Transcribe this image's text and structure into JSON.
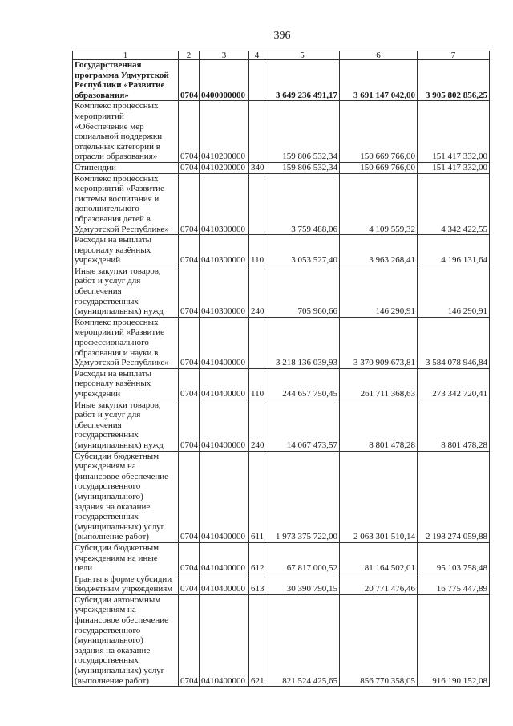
{
  "page_number": "396",
  "table": {
    "headers": [
      "1",
      "2",
      "3",
      "4",
      "5",
      "6",
      "7"
    ],
    "rows": [
      {
        "bold": true,
        "name": "Государственная\nпрограмма Удмуртской\nРеспублики «Развитие\nобразования»",
        "rz": "0704",
        "csr": "0400000000",
        "vr": "",
        "v5": "3 649 236 491,17",
        "v6": "3 691 147 042,00",
        "v7": "3 905 802 856,25"
      },
      {
        "name": "Комплекс процессных\nмероприятий\n«Обеспечение мер\nсоциальной поддержки\nотдельных категорий в\nотрасли образования»",
        "rz": "0704",
        "csr": "0410200000",
        "vr": "",
        "v5": "159 806 532,34",
        "v6": "150 669 766,00",
        "v7": "151 417 332,00"
      },
      {
        "name": "Стипендии",
        "rz": "0704",
        "csr": "0410200000",
        "vr": "340",
        "v5": "159 806 532,34",
        "v6": "150 669 766,00",
        "v7": "151 417 332,00"
      },
      {
        "name": "Комплекс процессных\nмероприятий «Развитие\nсистемы воспитания и\nдополнительного\nобразования детей в\nУдмуртской Республике»",
        "rz": "0704",
        "csr": "0410300000",
        "vr": "",
        "v5": "3 759 488,06",
        "v6": "4 109 559,32",
        "v7": "4 342 422,55"
      },
      {
        "name": "Расходы на выплаты\nперсоналу казённых\nучреждений",
        "rz": "0704",
        "csr": "0410300000",
        "vr": "110",
        "v5": "3 053 527,40",
        "v6": "3 963 268,41",
        "v7": "4 196 131,64"
      },
      {
        "name": "Иные закупки товаров,\nработ и услуг для\nобеспечения\nгосударственных\n(муниципальных) нужд",
        "rz": "0704",
        "csr": "0410300000",
        "vr": "240",
        "v5": "705 960,66",
        "v6": "146 290,91",
        "v7": "146 290,91"
      },
      {
        "name": "Комплекс процессных\nмероприятий «Развитие\nпрофессионального\nобразования и науки в\nУдмуртской Республике»",
        "rz": "0704",
        "csr": "0410400000",
        "vr": "",
        "v5": "3 218 136 039,93",
        "v6": "3 370 909 673,81",
        "v7": "3 584 078 946,84"
      },
      {
        "name": "Расходы на выплаты\nперсоналу казённых\nучреждений",
        "rz": "0704",
        "csr": "0410400000",
        "vr": "110",
        "v5": "244 657 750,45",
        "v6": "261 711 368,63",
        "v7": "273 342 720,41"
      },
      {
        "name": "Иные закупки товаров,\nработ и услуг для\nобеспечения\nгосударственных\n(муниципальных) нужд",
        "rz": "0704",
        "csr": "0410400000",
        "vr": "240",
        "v5": "14 067 473,57",
        "v6": "8 801 478,28",
        "v7": "8 801 478,28"
      },
      {
        "name": "Субсидии бюджетным\nучреждениям на\nфинансовое обеспечение\nгосударственного\n(муниципального)\nзадания на оказание\nгосударственных\n(муниципальных) услуг\n(выполнение работ)",
        "rz": "0704",
        "csr": "0410400000",
        "vr": "611",
        "v5": "1 973 375 722,00",
        "v6": "2 063 301 510,14",
        "v7": "2 198 274 059,88"
      },
      {
        "name": "Субсидии бюджетным\nучреждениям на иные\nцели",
        "rz": "0704",
        "csr": "0410400000",
        "vr": "612",
        "v5": "67 817 000,52",
        "v6": "81 164 502,01",
        "v7": "95 103 758,48"
      },
      {
        "name": "Гранты в форме субсидии\nбюджетным учреждениям",
        "rz": "0704",
        "csr": "0410400000",
        "vr": "613",
        "v5": "30 390 790,15",
        "v6": "20 771 476,46",
        "v7": "16 775 447,89"
      },
      {
        "name": "Субсидии автономным\nучреждениям на\nфинансовое обеспечение\nгосударственного\n(муниципального)\nзадания на оказание\nгосударственных\n(муниципальных) услуг\n(выполнение работ)",
        "rz": "0704",
        "csr": "0410400000",
        "vr": "621",
        "v5": "821 524 425,65",
        "v6": "856 770 358,05",
        "v7": "916 190 152,08"
      }
    ]
  }
}
